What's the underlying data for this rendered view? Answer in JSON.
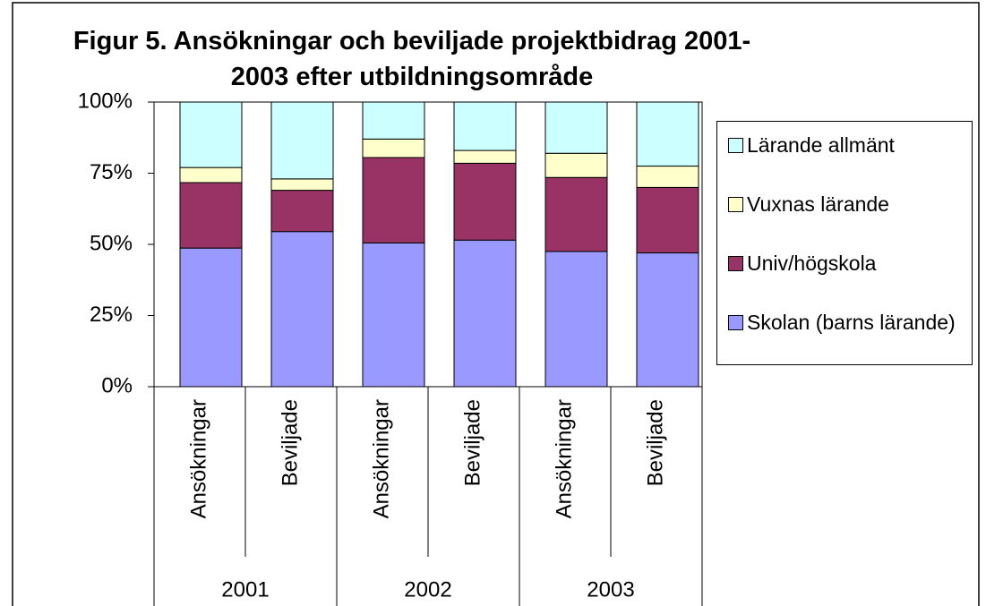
{
  "chart_data": {
    "type": "stacked_bar_percent",
    "title": "Figur 5. Ansökningar och beviljade projektbidrag 2001-2003 efter utbildningsområde",
    "categories": [
      "Ansökningar",
      "Beviljade",
      "Ansökningar",
      "Beviljade",
      "Ansökningar",
      "Beviljade"
    ],
    "groups": [
      "2001",
      "2002",
      "2003"
    ],
    "series": [
      {
        "name": "Skolan (barns lärande)",
        "color": "#9999ff",
        "values": [
          48.7,
          54.5,
          50.5,
          51.5,
          47.5,
          47
        ]
      },
      {
        "name": "Univ/högskola",
        "color": "#993366",
        "values": [
          23,
          14.5,
          30,
          27,
          26,
          23
        ]
      },
      {
        "name": "Vuxnas lärande",
        "color": "#ffffcc",
        "values": [
          5.3,
          4,
          6.5,
          4.5,
          8.5,
          7.5
        ]
      },
      {
        "name": "Lärande allmänt",
        "color": "#ccffff",
        "values": [
          23,
          27,
          13,
          17,
          18,
          22.5
        ]
      }
    ],
    "ylim": [
      0,
      100
    ],
    "yticks": [
      {
        "value": 0,
        "label": "0%"
      },
      {
        "value": 25,
        "label": "25%"
      },
      {
        "value": 50,
        "label": "50%"
      },
      {
        "value": 75,
        "label": "75%"
      },
      {
        "value": 100,
        "label": "100%"
      }
    ],
    "legend": "right"
  }
}
